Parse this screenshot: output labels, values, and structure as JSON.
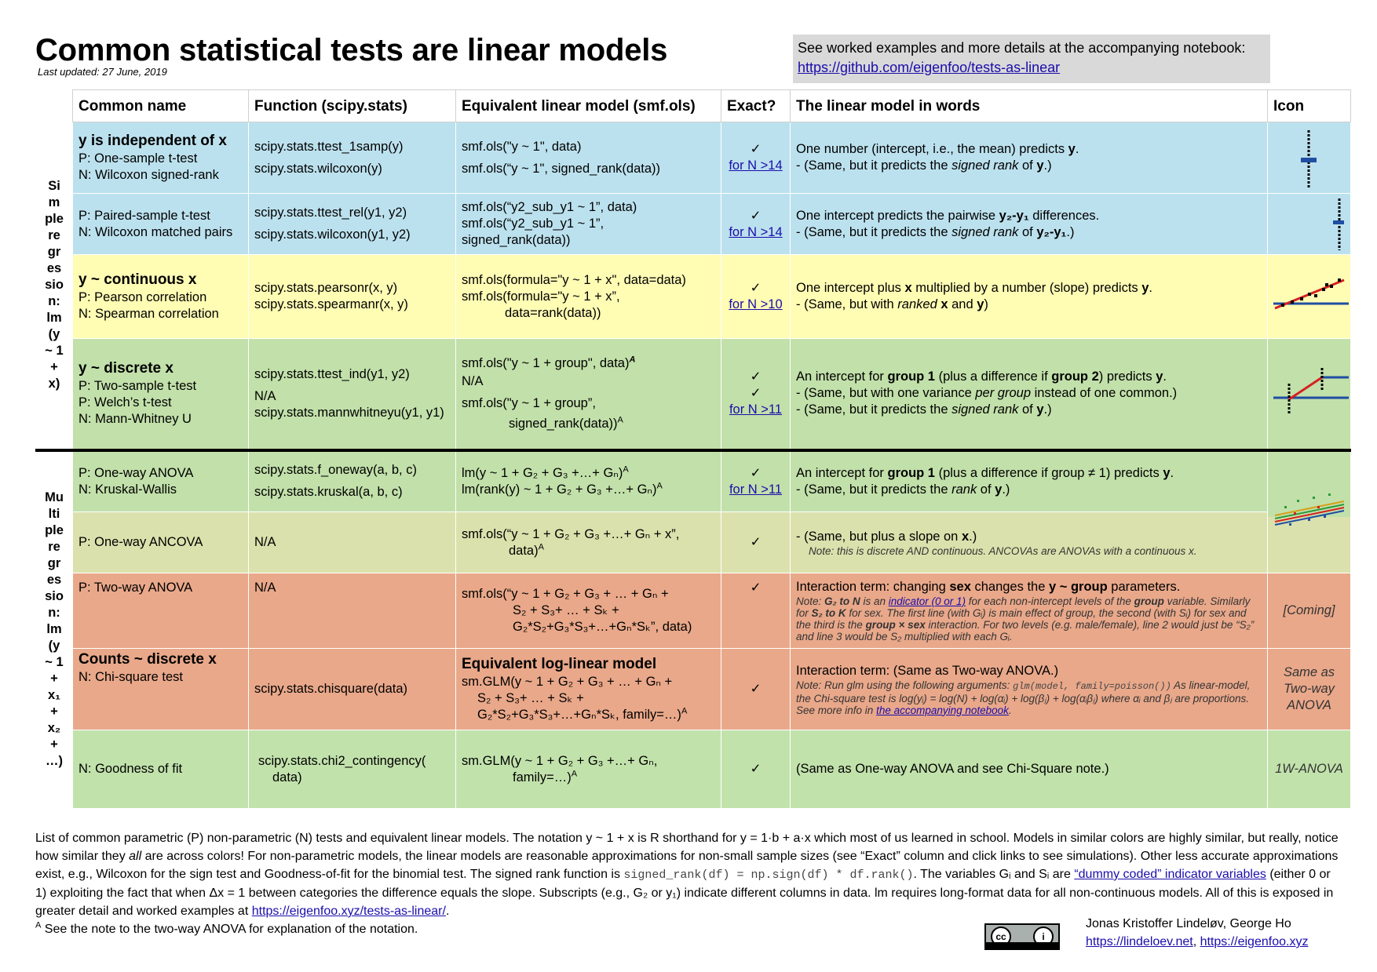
{
  "header": {
    "title": "Common statistical tests are linear models",
    "updated": "Last updated: 27 June, 2019",
    "note_text": "See worked examples and more details at the accompanying notebook: ",
    "note_link": "https://github.com/eigenfoo/tests-as-linear"
  },
  "columns": [
    "Common name",
    "Function (scipy.stats)",
    "Equivalent linear model (smf.ols)",
    "Exact?",
    "The linear model in words",
    "Icon"
  ],
  "side_labels": {
    "simple": "Simple regression: lm(y ~ 1 + x)",
    "simple_lines": [
      "Si",
      "m",
      "ple",
      "re",
      "gr",
      "es",
      "sio",
      "n:",
      "lm",
      "(y",
      "~ 1",
      "+",
      "x)"
    ],
    "multiple_lines": [
      "Mu",
      "lti",
      "ple",
      "re",
      "gr",
      "es",
      "sio",
      "n:",
      "lm",
      "(y",
      "~ 1",
      "+",
      "x₁",
      "+",
      "x₂",
      "+",
      "…)"
    ]
  },
  "rows": {
    "r1": {
      "heading": "y is independent of x",
      "names": [
        "P: One-sample t-test",
        "N: Wilcoxon signed-rank"
      ],
      "funcs": [
        "scipy.stats.ttest_1samp(y)",
        "scipy.stats.wilcoxon(y)"
      ],
      "models": [
        "smf.ols(\"y ~ 1\", data)",
        "smf.ols(“y ~ 1\", signed_rank(data))"
      ],
      "exact": "✓",
      "exact_link": "for N >14",
      "words1": "One number (intercept, i.e., the mean) predicts ",
      "words1b": "y",
      "words2": " - (Same, but it predicts the ",
      "words2i": "signed rank",
      "words2b": " of ",
      "words2y": "y",
      "words2e": ".)"
    },
    "r2": {
      "names": [
        "P: Paired-sample t-test",
        "N: Wilcoxon matched pairs"
      ],
      "funcs": [
        "scipy.stats.ttest_rel(y1, y2)",
        "scipy.stats.wilcoxon(y1, y2)"
      ],
      "models": [
        "smf.ols(“y2_sub_y1 ~ 1”, data)",
        "smf.ols(“y2_sub_y1 ~ 1”,",
        "signed_rank(data))"
      ],
      "exact": "✓",
      "exact_link": "for N >14",
      "words1": "One intercept predicts the pairwise ",
      "words1b": "y₂-y₁",
      "words1e": " differences.",
      "words2": " - (Same, but it predicts the ",
      "words2i": "signed rank",
      "words2b": " of ",
      "words2y": "y₂-y₁",
      "words2e": ".)"
    },
    "r3": {
      "heading": "y ~ continuous x",
      "names": [
        "P: Pearson correlation",
        "N: Spearman correlation"
      ],
      "funcs": [
        "scipy.stats.pearsonr(x, y)",
        "scipy.stats.spearmanr(x, y)"
      ],
      "models": [
        "smf.ols(formula=\"y ~ 1 + x\", data=data)",
        "smf.ols(formula=\"y ~ 1 + x”,",
        "data=rank(data))"
      ],
      "exact": "✓",
      "exact_link": "for N >10",
      "words1": "One intercept plus ",
      "words1b": "x",
      "words1e": " multiplied by a number (slope) predicts ",
      "words1y": "y",
      "words2": " - (Same, but with ",
      "words2i": "ranked",
      "words2b": " x",
      "words2m": " and ",
      "words2y": "y",
      "words2e": ")"
    },
    "r4": {
      "heading": "y ~ discrete x",
      "names": [
        "P: Two-sample t-test",
        "P: Welch’s t-test",
        "N: Mann-Whitney U"
      ],
      "funcs": [
        "scipy.stats.ttest_ind(y1, y2)",
        "N/A",
        "scipy.stats.mannwhitneyu(y1, y1)"
      ],
      "models": [
        "smf.ols(\"y ~ 1 + group\", data)",
        "N/A",
        "smf.ols(\"y ~ 1 + group”,",
        "signed_rank(data))"
      ],
      "exact": [
        "✓",
        "✓"
      ],
      "exact_link": "for N >11",
      "words1": "An intercept for ",
      "words1b": "group 1",
      "words1c": " (plus a difference if ",
      "words1d": "group 2",
      "words1e": ") predicts ",
      "words1y": "y",
      "words2": " - (Same, but with one variance ",
      "words2i": "per group",
      "words2e": " instead of one common.)",
      "words3": " - (Same, but it predicts the ",
      "words3i": "signed rank",
      "words3b": " of ",
      "words3y": "y",
      "words3e": ".)"
    },
    "r5": {
      "names": [
        "P: One-way ANOVA",
        "N: Kruskal-Wallis"
      ],
      "funcs": [
        "scipy.stats.f_oneway(a, b, c)",
        "scipy.stats.kruskal(a, b, c)"
      ],
      "models": [
        "lm(y ~ 1 + G₂ + G₃ +…+ Gₙ)",
        "lm(rank(y) ~ 1 + G₂ + G₃ +…+ Gₙ)"
      ],
      "exact": "✓",
      "exact_link": "for N >11",
      "words1": "An intercept for ",
      "words1b": "group 1",
      "words1c": " (plus a difference if group ≠ 1) predicts ",
      "words1y": "y",
      "words2": " - (Same, but it predicts the ",
      "words2i": "rank",
      "words2b": " of ",
      "words2y": "y",
      "words2e": ".)"
    },
    "r6": {
      "names": [
        "P: One-way ANCOVA"
      ],
      "funcs": [
        "N/A"
      ],
      "models": [
        "smf.ols(“y ~ 1 + G₂ + G₃ +…+ Gₙ + x”,",
        "data)"
      ],
      "exact": "✓",
      "words1": "- (Same, but plus a slope on ",
      "words1b": "x",
      "words1e": ".)",
      "note": "Note: this is discrete AND continuous. ANCOVAs are ANOVAs with a continuous x."
    },
    "r7": {
      "names": [
        "P: Two-way ANOVA"
      ],
      "funcs": [
        "N/A"
      ],
      "models": [
        "smf.ols(“y ~ 1 + G₂ + G₃ + … + Gₙ +",
        "S₂ + S₃+ … + Sₖ +",
        "G₂*S₂+G₃*S₃+…+Gₙ*Sₖ”, data)"
      ],
      "exact": "✓",
      "words1": "Interaction term: changing ",
      "words1b": "sex",
      "words1c": " changes the ",
      "words1d": "y ~ group",
      "words1e": " parameters.",
      "note_a": "Note: ",
      "note_b": "G₂ to N",
      "note_c": " is an ",
      "note_link": "indicator (0 or 1)",
      "note_d": " for each non-intercept levels of the ",
      "note_e": "group",
      "note_f": " variable. Similarly for ",
      "note_g": "S₂ to K",
      "note_h": " for sex. The first line (with Gᵢ) is main effect of group, the second (with Sᵢ) for sex and the third is the ",
      "note_i": "group × sex",
      "note_j": " interaction. For two levels (e.g. male/female), line 2 would just be “S₂” and line 3 would be S₂ multiplied with each Gᵢ.",
      "icon": "[Coming]"
    },
    "r8": {
      "heading": "Counts ~ discrete x",
      "names": [
        "N: Chi-square test"
      ],
      "funcs": [
        "scipy.stats.chisquare(data)"
      ],
      "model_heading": "Equivalent log-linear model",
      "models": [
        "sm.GLM(y ~ 1 + G₂ + G₃ + … + Gₙ +",
        "S₂ + S₃+ … + Sₖ +",
        "G₂*S₂+G₃*S₃+…+Gₙ*Sₖ, family=…)"
      ],
      "exact": "✓",
      "words1": "Interaction term: (Same as Two-way ANOVA.)",
      "note_a": "Note: Run glm using the following arguments: ",
      "note_code": "glm(model, family=poisson())",
      "note_b": " As linear-model, the Chi-square test is log(yᵢ) = log(N) + log(αᵢ) + log(βⱼ) + log(αᵢβⱼ) where αᵢ and βⱼ are proportions. See more info in ",
      "note_link": "the accompanying notebook",
      "note_c": ".",
      "icon": "Same as Two-way ANOVA"
    },
    "r9": {
      "names": [
        "N: Goodness of fit"
      ],
      "funcs": [
        "scipy.stats.chi2_contingency(",
        "data)"
      ],
      "models": [
        "sm.GLM(y ~ 1 + G₂ + G₃ +…+ Gₙ,",
        "family=…)"
      ],
      "exact": "✓",
      "words1": "(Same as One-way ANOVA and see Chi-Square note.)",
      "icon": "1W-ANOVA"
    }
  },
  "footer": {
    "p1": "List of common parametric (P) non-parametric (N) tests and equivalent linear models. The notation y ~ 1 + x is R shorthand for y = 1·b + a·x which most of us learned in school. Models in similar colors are highly similar, but really, notice how similar they ",
    "p1i": "all",
    "p2": " are across colors! For non-parametric models, the linear models are reasonable approximations for non-small sample sizes (see “Exact” column and click links to see simulations). Other less accurate approximations exist, e.g., Wilcoxon for the sign test and Goodness-of-fit for the binomial test. The signed rank function is ",
    "code": "signed_rank(df) = np.sign(df) * df.rank()",
    "p3": ". The variables Gᵢ and Sᵢ are ",
    "link1": "“dummy coded” indicator variables",
    "p4": " (either 0 or 1) exploiting the fact that when Δx = 1 between categories the difference equals the slope. Subscripts (e.g., G₂ or y₁) indicate different columns in data. lm requires long-format data for all non-continuous models. All of this is exposed in greater detail and worked examples at ",
    "link2": "https://eigenfoo.xyz/tests-as-linear/",
    "p5": ".",
    "fn_sup": "A",
    "fn": " See the note to the two-way ANOVA for explanation of the notation.",
    "authors": "Jonas Kristoffer Lindeløv, George Ho",
    "author_link1": "https://lindeloev.net",
    "author_sep": ", ",
    "author_link2": "https://eigenfoo.xyz"
  },
  "colors": {
    "blue": "#bce1ee",
    "yellow": "#fffcb4",
    "green": "#c2e0aa",
    "olive": "#dbe1ac",
    "salmon": "#e9a88a",
    "link": "#1a0dab"
  },
  "icons": [
    "one-sample-dots-icon",
    "paired-dots-icon",
    "correlation-scatter-icon",
    "two-group-icon",
    "anova-scatter-icon",
    "cc-by-license-icon"
  ]
}
